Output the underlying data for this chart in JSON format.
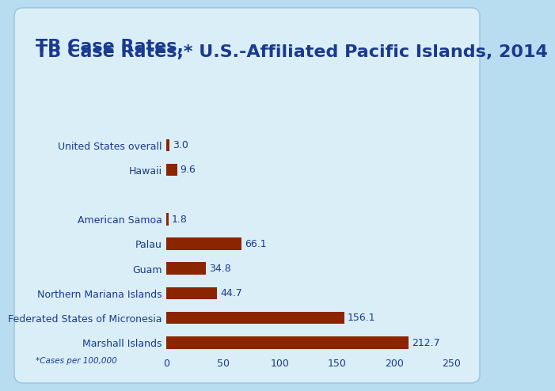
{
  "title_part1": "TB Case Rates,",
  "title_sup": "*",
  "title_part2": " U.S.-Affiliated Pacific Islands, 2014",
  "title_fontsize": 16,
  "title_color": "#1a3a8f",
  "footnote": "*Cases per 100,000",
  "footnote_fontsize": 7.5,
  "categories": [
    "United States overall",
    "Hawaii",
    "",
    "American Samoa",
    "Palau",
    "Guam",
    "Northern Mariana Islands",
    "Federated States of Micronesia",
    "Marshall Islands"
  ],
  "values": [
    3.0,
    9.6,
    0,
    1.8,
    66.1,
    34.8,
    44.7,
    156.1,
    212.7
  ],
  "bar_color": "#8B2500",
  "label_color": "#1a3a8f",
  "value_color": "#1a3a8f",
  "outer_bg": "#b8ddf0",
  "panel_bg": "#daeef8",
  "panel_edge": "#a0c8e0",
  "xlim": [
    0,
    250
  ],
  "xticks": [
    0,
    50,
    100,
    150,
    200,
    250
  ],
  "tick_fontsize": 9,
  "label_fontsize": 9,
  "value_fontsize": 9,
  "bar_height": 0.5
}
